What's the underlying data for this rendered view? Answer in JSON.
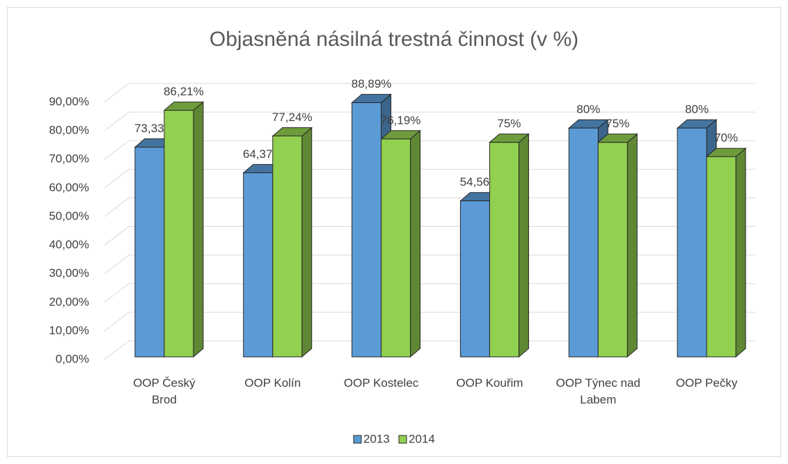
{
  "chart_data": {
    "type": "bar3d",
    "title": "Objasněná násilná trestná činnost (v %)",
    "categories": [
      "OOP Český Brod",
      "OOP Kolín",
      "OOP Kostelec",
      "OOP Kouřim",
      "OOP Týnec nad Labem",
      "OOP Pečky"
    ],
    "series": [
      {
        "name": "2013",
        "color": "#5b9bd5",
        "values": [
          73.33,
          64.37,
          88.89,
          54.56,
          80,
          80
        ],
        "value_labels": [
          "73,33%",
          "64,37%",
          "88,89%",
          "54,56%",
          "80%",
          "80%"
        ]
      },
      {
        "name": "2014",
        "color": "#92d050",
        "values": [
          86.21,
          77.24,
          76.19,
          75,
          75,
          70
        ],
        "value_labels": [
          "86,21%",
          "77,24%",
          "76,19%",
          "75%",
          "75%",
          "70%"
        ]
      }
    ],
    "ylim": [
      0,
      90
    ],
    "yticks": [
      {
        "value": 0,
        "label": "0,00%"
      },
      {
        "value": 10,
        "label": "10,00%"
      },
      {
        "value": 20,
        "label": "20,00%"
      },
      {
        "value": 30,
        "label": "30,00%"
      },
      {
        "value": 40,
        "label": "40,00%"
      },
      {
        "value": 50,
        "label": "50,00%"
      },
      {
        "value": 60,
        "label": "60,00%"
      },
      {
        "value": 70,
        "label": "70,00%"
      },
      {
        "value": 80,
        "label": "80,00%"
      },
      {
        "value": 90,
        "label": "90,00%"
      }
    ],
    "grid": true,
    "legend": "bottom"
  }
}
